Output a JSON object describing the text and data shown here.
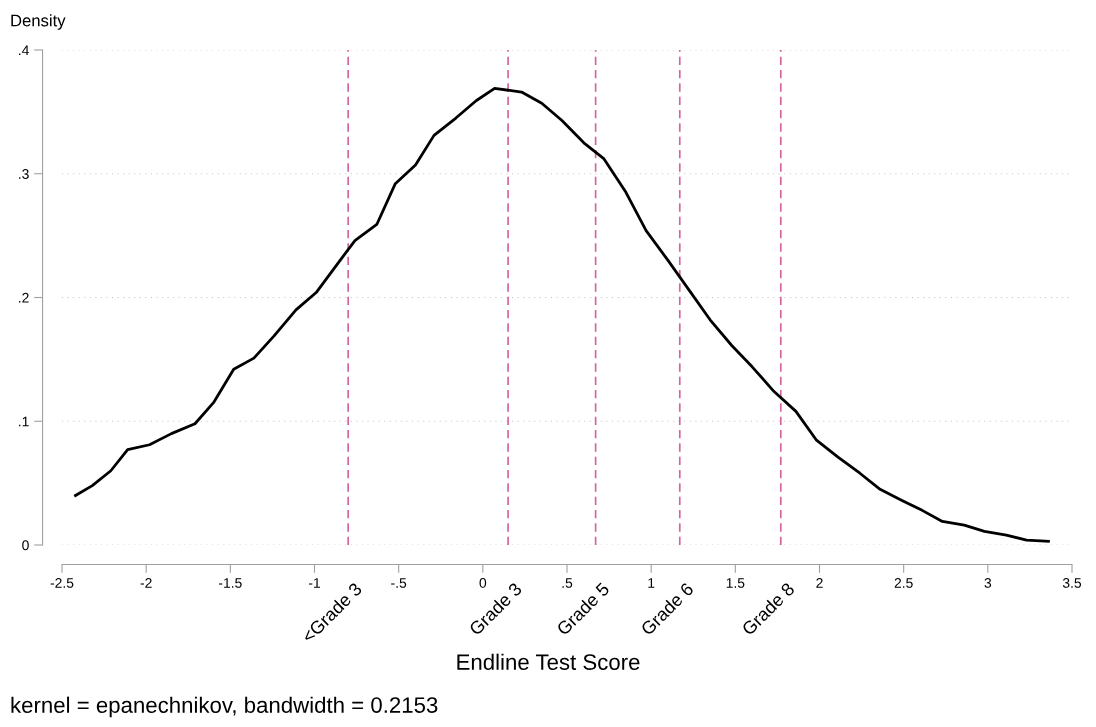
{
  "chart_data": {
    "type": "line",
    "ylabel": "Density",
    "xlabel": "Endline Test Score",
    "annotations": [
      "kernel = epanechnikov, bandwidth = 0.2153"
    ],
    "x": [
      -2.42,
      -2.32,
      -2.21,
      -2.11,
      -1.98,
      -1.85,
      -1.71,
      -1.6,
      -1.48,
      -1.36,
      -1.24,
      -1.11,
      -0.99,
      -0.87,
      -0.76,
      -0.63,
      -0.52,
      -0.4,
      -0.29,
      -0.16,
      -0.04,
      0.07,
      0.23,
      0.35,
      0.47,
      0.6,
      0.72,
      0.85,
      0.97,
      1.1,
      1.22,
      1.35,
      1.48,
      1.6,
      1.73,
      1.86,
      1.98,
      2.11,
      2.24,
      2.36,
      2.49,
      2.61,
      2.73,
      2.86,
      2.98,
      3.11,
      3.23,
      3.36
    ],
    "series": [
      {
        "color": "#000000",
        "values": [
          0.04,
          0.048,
          0.06,
          0.077,
          0.081,
          0.09,
          0.098,
          0.115,
          0.142,
          0.151,
          0.169,
          0.19,
          0.204,
          0.226,
          0.246,
          0.259,
          0.292,
          0.307,
          0.331,
          0.345,
          0.359,
          0.369,
          0.366,
          0.357,
          0.343,
          0.325,
          0.312,
          0.285,
          0.254,
          0.23,
          0.207,
          0.182,
          0.161,
          0.144,
          0.124,
          0.108,
          0.085,
          0.071,
          0.058,
          0.045,
          0.036,
          0.028,
          0.019,
          0.016,
          0.011,
          0.008,
          0.004,
          0.003
        ]
      }
    ],
    "xlim": [
      -2.5,
      3.5
    ],
    "ylim": [
      0,
      0.4
    ],
    "xticks": [
      {
        "value": -2.5,
        "label": "-2.5"
      },
      {
        "value": -2,
        "label": "-2"
      },
      {
        "value": -1.5,
        "label": "-1.5"
      },
      {
        "value": -1,
        "label": "-1"
      },
      {
        "value": -0.5,
        "label": "-.5"
      },
      {
        "value": 0,
        "label": "0"
      },
      {
        "value": 0.5,
        "label": ".5"
      },
      {
        "value": 1,
        "label": "1"
      },
      {
        "value": 1.5,
        "label": "1.5"
      },
      {
        "value": 2,
        "label": "2"
      },
      {
        "value": 2.5,
        "label": "2.5"
      },
      {
        "value": 3,
        "label": "3"
      },
      {
        "value": 3.5,
        "label": "3.5"
      }
    ],
    "yticks": [
      0,
      {
        "value": 0.1,
        "label": ".1"
      },
      {
        "value": 0.2,
        "label": ".2"
      },
      {
        "value": 0.3,
        "label": ".3"
      },
      {
        "value": 0.4,
        "label": ".4"
      }
    ],
    "grid": "y",
    "marker": "none",
    "line_style": "solid",
    "ref_lines": [
      {
        "axis": "x",
        "value": -0.8,
        "label": "<Grade 3",
        "color": "#d4649f",
        "line_style": "dashed"
      },
      {
        "axis": "x",
        "value": 0.15,
        "label": "Grade 3",
        "color": "#d4649f",
        "line_style": "dashed"
      },
      {
        "axis": "x",
        "value": 0.67,
        "label": "Grade 5",
        "color": "#d4649f",
        "line_style": "dashed"
      },
      {
        "axis": "x",
        "value": 1.17,
        "label": "Grade 6",
        "color": "#d4649f",
        "line_style": "dashed"
      },
      {
        "axis": "x",
        "value": 1.77,
        "label": "Grade 8",
        "color": "#d4649f",
        "line_style": "dashed"
      }
    ]
  }
}
